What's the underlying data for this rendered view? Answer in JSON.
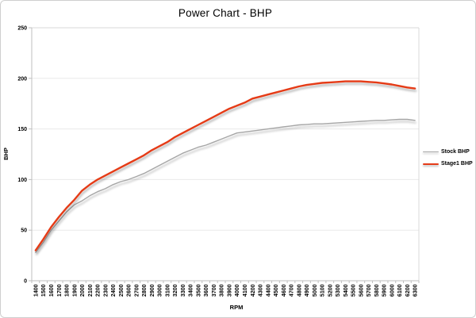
{
  "window": {
    "title": "Power Chart - BHP"
  },
  "chart_data": {
    "type": "line",
    "title": "Power Chart - BHP",
    "xlabel": "RPM",
    "ylabel": "BHP",
    "ylim": [
      0,
      250
    ],
    "yticks": [
      0,
      50,
      100,
      150,
      200,
      250
    ],
    "grid": true,
    "legend_position": "right",
    "categories": [
      1400,
      1500,
      1600,
      1700,
      1800,
      1900,
      2000,
      2100,
      2200,
      2300,
      2400,
      2500,
      2600,
      2700,
      2800,
      2900,
      3000,
      3100,
      3200,
      3300,
      3400,
      3500,
      3600,
      3700,
      3800,
      3900,
      4000,
      4100,
      4200,
      4300,
      4400,
      4500,
      4600,
      4700,
      4800,
      4900,
      5000,
      5100,
      5200,
      5300,
      5400,
      5500,
      5600,
      5700,
      5800,
      5900,
      6000,
      6100,
      6200,
      6300
    ],
    "series": [
      {
        "name": "Stock BHP",
        "color": "#a6a6a6",
        "stroke_width": 1.4,
        "values": [
          28,
          38,
          50,
          59,
          68,
          75,
          79,
          84,
          88,
          91,
          95,
          98,
          100,
          103,
          106,
          110,
          114,
          118,
          122,
          126,
          129,
          132,
          134,
          137,
          140,
          143,
          146,
          147,
          148,
          149,
          150,
          151,
          152,
          153,
          154,
          154.5,
          155,
          155,
          155.5,
          156,
          156.5,
          157,
          157.5,
          158,
          158.5,
          158.5,
          159,
          159.5,
          159.5,
          158.5
        ]
      },
      {
        "name": "Stage1 BHP",
        "color": "#e53b18",
        "stroke_width": 2.4,
        "values": [
          30,
          41,
          53,
          63,
          72,
          80,
          89,
          95,
          100,
          104,
          108,
          112,
          116,
          120,
          124,
          129,
          133,
          137,
          142,
          146,
          150,
          154,
          158,
          162,
          166,
          170,
          173,
          176,
          180,
          182,
          184,
          186,
          188,
          190,
          192,
          193.5,
          194.5,
          195.5,
          196,
          196.5,
          197,
          197,
          197,
          196.5,
          196,
          195,
          194,
          192.5,
          191,
          190
        ]
      }
    ]
  },
  "colors": {
    "axis_line": "#bfbfbf",
    "plot_border": "#d9d9d9",
    "gridline": "#e9e9e9",
    "tick_text": "#000000",
    "frame_border": "#cfcfcf"
  }
}
